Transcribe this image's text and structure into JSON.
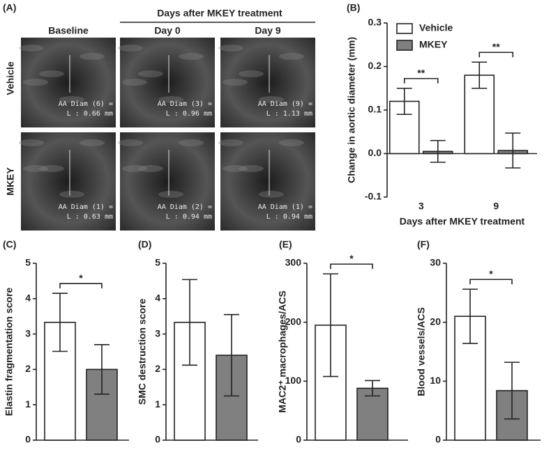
{
  "panel_a": {
    "label": "(A)",
    "header": "Days after MKEY treatment",
    "columns": [
      "Baseline",
      "Day 0",
      "Day 9"
    ],
    "rows": [
      "Vehicle",
      "MKEY"
    ],
    "images": [
      [
        [
          "AA Diam (6) =",
          "L : 0.66 mm"
        ],
        [
          "AA Diam (3) =",
          "L : 0.96 mm"
        ],
        [
          "AA Diam (9) =",
          "L : 1.13 mm"
        ]
      ],
      [
        [
          "AA Diam (1) =",
          "L : 0.63 mm"
        ],
        [
          "AA Diam (2) =",
          "L : 0.94 mm"
        ],
        [
          "AA Diam (1) =",
          "L : 0.94 mm"
        ]
      ]
    ]
  },
  "chart_data": [
    {
      "type": "bar",
      "label": "(B)",
      "ylabel": "Change in aortic diameter (mm)",
      "xlabel": "Days after MKEY treatment",
      "categories": [
        "3",
        "9"
      ],
      "series": [
        {
          "name": "Vehicle",
          "color": "#ffffff",
          "values": [
            0.12,
            0.18
          ],
          "errors": [
            0.03,
            0.03
          ]
        },
        {
          "name": "MKEY",
          "color": "#808080",
          "values": [
            0.005,
            0.007
          ],
          "errors": [
            0.025,
            0.04
          ]
        }
      ],
      "significance": [
        "**",
        "**"
      ],
      "ylim": [
        -0.1,
        0.3
      ],
      "yticks": [
        -0.1,
        {
          "value": 0,
          "label": "0.0"
        },
        0.1,
        0.2,
        0.3
      ],
      "legend": "upper-left"
    },
    {
      "type": "bar",
      "label": "(C)",
      "ylabel": "Elastin fragmentation score",
      "values": [
        3.33,
        2.0
      ],
      "errors": [
        0.82,
        0.7
      ],
      "colors": [
        "#ffffff",
        "#808080"
      ],
      "significance": [
        "*"
      ],
      "ylim": [
        0,
        5
      ],
      "yticks": [
        0,
        1,
        2,
        3,
        4,
        5
      ]
    },
    {
      "type": "bar",
      "label": "(D)",
      "ylabel": "SMC destruction score",
      "values": [
        3.33,
        2.4
      ],
      "errors": [
        1.21,
        1.15
      ],
      "colors": [
        "#ffffff",
        "#808080"
      ],
      "significance": [],
      "ylim": [
        0,
        5
      ],
      "yticks": [
        0,
        1,
        2,
        3,
        4,
        5
      ]
    },
    {
      "type": "bar",
      "label": "(E)",
      "ylabel": "MAC2⁺ macrophages/ACS",
      "values": [
        195,
        88
      ],
      "errors": [
        87,
        13
      ],
      "colors": [
        "#ffffff",
        "#808080"
      ],
      "significance": [
        "*"
      ],
      "ylim": [
        0,
        300
      ],
      "yticks": [
        0,
        100,
        200,
        300
      ]
    },
    {
      "type": "bar",
      "label": "(F)",
      "ylabel": "Blood vessels/ACS",
      "values": [
        21,
        8.4
      ],
      "errors": [
        4.6,
        4.8
      ],
      "colors": [
        "#ffffff",
        "#808080"
      ],
      "significance": [
        "*"
      ],
      "ylim": [
        0,
        30
      ],
      "yticks": [
        0,
        10,
        20,
        30
      ]
    }
  ]
}
